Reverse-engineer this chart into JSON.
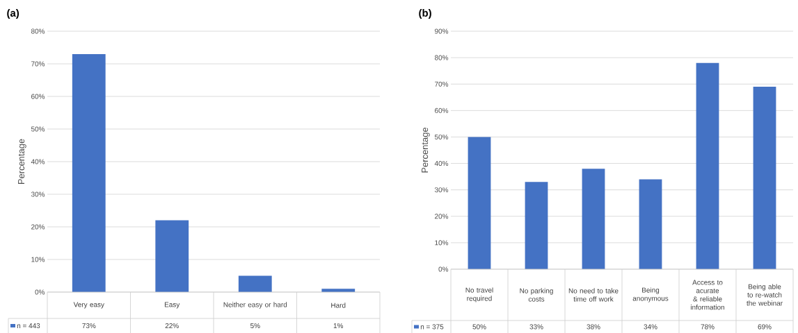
{
  "chart_data": [
    {
      "type": "bar",
      "title": "(a)",
      "ylabel": "Percentage",
      "categories": [
        "Very easy",
        "Easy",
        "Neither easy or hard",
        "Hard"
      ],
      "series": [
        {
          "name": "n = 443",
          "color": "#4472c4",
          "values": [
            73,
            22,
            5,
            1
          ],
          "value_labels": [
            "73%",
            "22%",
            "5%",
            "1%"
          ]
        }
      ],
      "ylim": [
        0,
        80
      ],
      "yticks": [
        {
          "value": 0,
          "label": "0%"
        },
        {
          "value": 10,
          "label": "10%"
        },
        {
          "value": 20,
          "label": "20%"
        },
        {
          "value": 30,
          "label": "30%"
        },
        {
          "value": 40,
          "label": "40%"
        },
        {
          "value": 50,
          "label": "50%"
        },
        {
          "value": 60,
          "label": "60%"
        },
        {
          "value": 70,
          "label": "70%"
        },
        {
          "value": 80,
          "label": "80%"
        }
      ],
      "grid": "y",
      "legend": "bottom"
    },
    {
      "type": "bar",
      "title": "(b)",
      "ylabel": "Percentage",
      "categories": [
        "No travel required",
        "No parking costs",
        "No need to take time off work",
        "Being anonymous",
        "Access to acurate & reliable information",
        "Being able to re-watch the webinar"
      ],
      "series": [
        {
          "name": "n = 375",
          "color": "#4472c4",
          "values": [
            50,
            33,
            38,
            34,
            78,
            69
          ],
          "value_labels": [
            "50%",
            "33%",
            "38%",
            "34%",
            "78%",
            "69%"
          ]
        }
      ],
      "ylim": [
        0,
        90
      ],
      "yticks": [
        {
          "value": 0,
          "label": "0%"
        },
        {
          "value": 10,
          "label": "10%"
        },
        {
          "value": 20,
          "label": "20%"
        },
        {
          "value": 30,
          "label": "30%"
        },
        {
          "value": 40,
          "label": "40%"
        },
        {
          "value": 50,
          "label": "50%"
        },
        {
          "value": 60,
          "label": "60%"
        },
        {
          "value": 70,
          "label": "70%"
        },
        {
          "value": 80,
          "label": "80%"
        },
        {
          "value": 90,
          "label": "90%"
        }
      ],
      "grid": "y",
      "legend": "bottom"
    }
  ]
}
